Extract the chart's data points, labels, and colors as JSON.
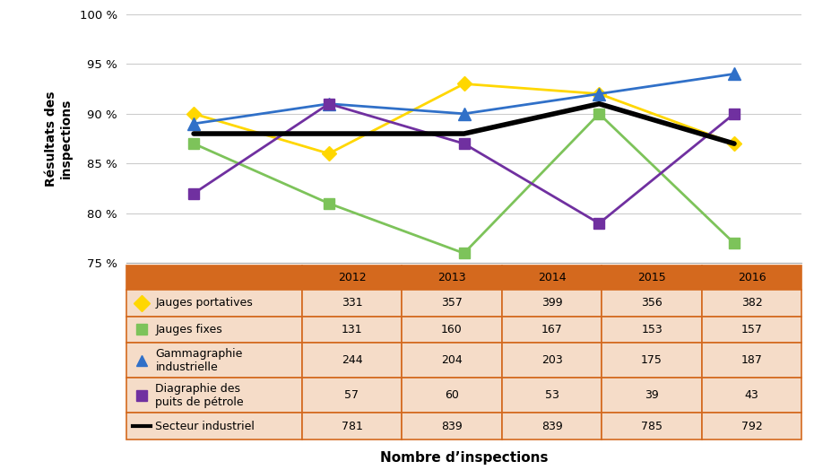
{
  "years": [
    2012,
    2013,
    2014,
    2015,
    2016
  ],
  "series": {
    "Jauges portatives": {
      "values": [
        90.0,
        86.0,
        93.0,
        92.0,
        87.0
      ],
      "color": "#FFD700",
      "marker": "D",
      "linewidth": 2.0,
      "markersize": 8
    },
    "Jauges fixes": {
      "values": [
        87.0,
        81.0,
        76.0,
        90.0,
        77.0
      ],
      "color": "#7DC35A",
      "marker": "s",
      "linewidth": 2.0,
      "markersize": 8
    },
    "Gammagraphie industrielle": {
      "values": [
        89.0,
        91.0,
        90.0,
        92.0,
        94.0
      ],
      "color": "#3070C8",
      "marker": "^",
      "linewidth": 2.0,
      "markersize": 10
    },
    "Diagraphie des puits de pétrole": {
      "values": [
        82.0,
        91.0,
        87.0,
        79.0,
        90.0
      ],
      "color": "#7030A0",
      "marker": "s",
      "linewidth": 2.0,
      "markersize": 8
    },
    "Secteur industriel": {
      "values": [
        88.0,
        88.0,
        88.0,
        91.0,
        87.0
      ],
      "color": "#000000",
      "marker": null,
      "linewidth": 4.0,
      "markersize": 0
    }
  },
  "table_rows": [
    [
      "Jauges portatives",
      "331",
      "357",
      "399",
      "356",
      "382"
    ],
    [
      "Jauges fixes",
      "131",
      "160",
      "167",
      "153",
      "157"
    ],
    [
      "Gammagraphie\nindustrielle",
      "244",
      "204",
      "203",
      "175",
      "187"
    ],
    [
      "Diagraphie des\npuits de pétrole",
      "57",
      "60",
      "53",
      "39",
      "43"
    ],
    [
      "Secteur industriel",
      "781",
      "839",
      "839",
      "785",
      "792"
    ]
  ],
  "year_headers": [
    "2012",
    "2013",
    "2014",
    "2015",
    "2016"
  ],
  "ylabel": "Résultats des\ninspections",
  "xlabel": "Nombre d’inspections",
  "ylim": [
    75,
    100
  ],
  "yticks": [
    75,
    80,
    85,
    90,
    95,
    100
  ],
  "ytick_labels": [
    "75 %",
    "80 %",
    "85 %",
    "90 %",
    "95 %",
    "100 %"
  ],
  "background_color": "#FFFFFF",
  "table_header_bg": "#D4691E",
  "table_row_bg": "#F5DCC8",
  "table_border_color": "#D4691E",
  "col_widths": [
    0.26,
    0.148,
    0.148,
    0.148,
    0.148,
    0.148
  ]
}
